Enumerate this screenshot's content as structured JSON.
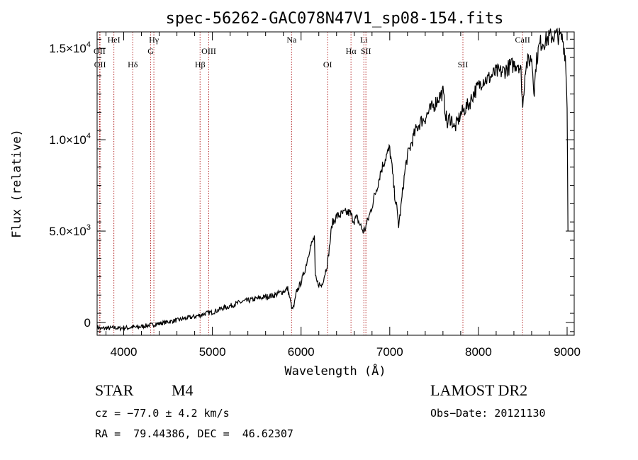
{
  "chart_data": {
    "type": "line",
    "title": "spec-56262-GAC078N47V1_sp08-154.fits",
    "xlabel": "Wavelength (Å)",
    "ylabel": "Flux (relative)",
    "xlim": [
      3700,
      9080
    ],
    "ylim": [
      -700,
      15900
    ],
    "x_ticks": [
      4000,
      5000,
      6000,
      7000,
      8000,
      9000
    ],
    "x_tick_labels": [
      "4000",
      "5000",
      "6000",
      "7000",
      "8000",
      "9000"
    ],
    "y_ticks": [
      0,
      5000,
      10000,
      15000
    ],
    "y_tick_labels": [
      {
        "mant": "0",
        "exp": ""
      },
      {
        "mant": "5.0×10",
        "exp": "3"
      },
      {
        "mant": "1.0×10",
        "exp": "4"
      },
      {
        "mant": "1.5×10",
        "exp": "4"
      }
    ],
    "grid": false,
    "line_color": "#000000",
    "marker_line_color": "#b22222",
    "series": [
      {
        "x": [
          3700,
          3750,
          3800,
          3850,
          3900,
          3950,
          4000,
          4050,
          4100,
          4150,
          4200,
          4250,
          4300,
          4350,
          4400,
          4450,
          4500,
          4600,
          4700,
          4800,
          4850,
          4900,
          4950,
          5000,
          5050,
          5100,
          5200,
          5300,
          5400,
          5500,
          5600,
          5700,
          5800,
          5850,
          5900,
          5920,
          5950,
          6000,
          6050,
          6100,
          6130,
          6150,
          6160,
          6180,
          6200,
          6230,
          6260,
          6300,
          6350,
          6400,
          6450,
          6500,
          6550,
          6580,
          6600,
          6630,
          6650,
          6680,
          6700,
          6720,
          6740,
          6760,
          6780,
          6800,
          6850,
          6900,
          6950,
          7000,
          7020,
          7050,
          7080,
          7100,
          7120,
          7150,
          7180,
          7200,
          7250,
          7300,
          7350,
          7400,
          7450,
          7500,
          7550,
          7600,
          7620,
          7650,
          7670,
          7700,
          7730,
          7750,
          7800,
          7850,
          7900,
          7950,
          8000,
          8050,
          8100,
          8150,
          8200,
          8250,
          8300,
          8350,
          8400,
          8450,
          8480,
          8500,
          8520,
          8530,
          8550,
          8600,
          8630,
          8650,
          8680,
          8700,
          8750,
          8800,
          8850,
          8900,
          8950,
          8980,
          9000,
          9010
        ],
        "y": [
          -250,
          -350,
          -300,
          -320,
          -280,
          -330,
          -280,
          -300,
          -250,
          -270,
          -220,
          -180,
          -150,
          -100,
          -60,
          -20,
          30,
          120,
          230,
          320,
          380,
          460,
          520,
          560,
          650,
          760,
          900,
          1080,
          1200,
          1300,
          1400,
          1500,
          1700,
          1850,
          700,
          900,
          1700,
          2200,
          3000,
          4100,
          4400,
          4700,
          2500,
          2200,
          2100,
          2000,
          2500,
          3300,
          5400,
          5800,
          5900,
          6000,
          6000,
          5700,
          5600,
          5700,
          5500,
          5200,
          5000,
          5100,
          5400,
          5700,
          6000,
          6400,
          7300,
          8300,
          9000,
          9500,
          8700,
          7200,
          6200,
          5300,
          6000,
          7400,
          8600,
          9100,
          9900,
          10600,
          11000,
          11200,
          11600,
          11900,
          12300,
          12600,
          11800,
          10800,
          11200,
          11100,
          10600,
          10800,
          11400,
          11700,
          12000,
          12600,
          12900,
          13300,
          13300,
          13500,
          13700,
          13700,
          13800,
          14000,
          14100,
          14200,
          13700,
          11700,
          13300,
          14000,
          14200,
          14500,
          12600,
          14200,
          15000,
          15300,
          15400,
          15600,
          15700,
          15700,
          15500,
          14600,
          12000,
          5000
        ]
      }
    ],
    "line_markers": [
      {
        "x": 3727,
        "labels": [
          "OII"
        ],
        "row": [
          1
        ]
      },
      {
        "x": 3733,
        "labels": [
          "OII"
        ],
        "row": [
          2
        ]
      },
      {
        "x": 3889,
        "labels": [
          "HeI"
        ],
        "row": [
          0
        ]
      },
      {
        "x": 4102,
        "labels": [
          "Hδ"
        ],
        "row": [
          2
        ]
      },
      {
        "x": 4304,
        "labels": [
          "G"
        ],
        "row": [
          1
        ]
      },
      {
        "x": 4340,
        "labels": [
          "Hγ"
        ],
        "row": [
          0
        ]
      },
      {
        "x": 4861,
        "labels": [
          "Hβ"
        ],
        "row": [
          2
        ]
      },
      {
        "x": 4959,
        "labels": [
          "OIII"
        ],
        "row": [
          1
        ]
      },
      {
        "x": 5893,
        "labels": [
          "Na"
        ],
        "row": [
          0
        ]
      },
      {
        "x": 6300,
        "labels": [
          "OI"
        ],
        "row": [
          2
        ]
      },
      {
        "x": 6563,
        "labels": [
          "Hα"
        ],
        "row": [
          1
        ]
      },
      {
        "x": 6708,
        "labels": [
          "Li"
        ],
        "row": [
          0
        ]
      },
      {
        "x": 6731,
        "labels": [
          "SII"
        ],
        "row": [
          1
        ]
      },
      {
        "x": 7825,
        "labels": [
          "SII"
        ],
        "row": [
          2
        ]
      },
      {
        "x": 8498,
        "labels": [
          "CaII"
        ],
        "row": [
          0
        ]
      }
    ]
  },
  "info": {
    "class": "STAR",
    "subclass": "M4",
    "release": "LAMOST DR2",
    "cz": "cz = −77.0 ± 4.2 km/s",
    "obs_date": "Obs−Date: 20121130",
    "radec": "RA =  79.44386, DEC =  46.62307"
  }
}
